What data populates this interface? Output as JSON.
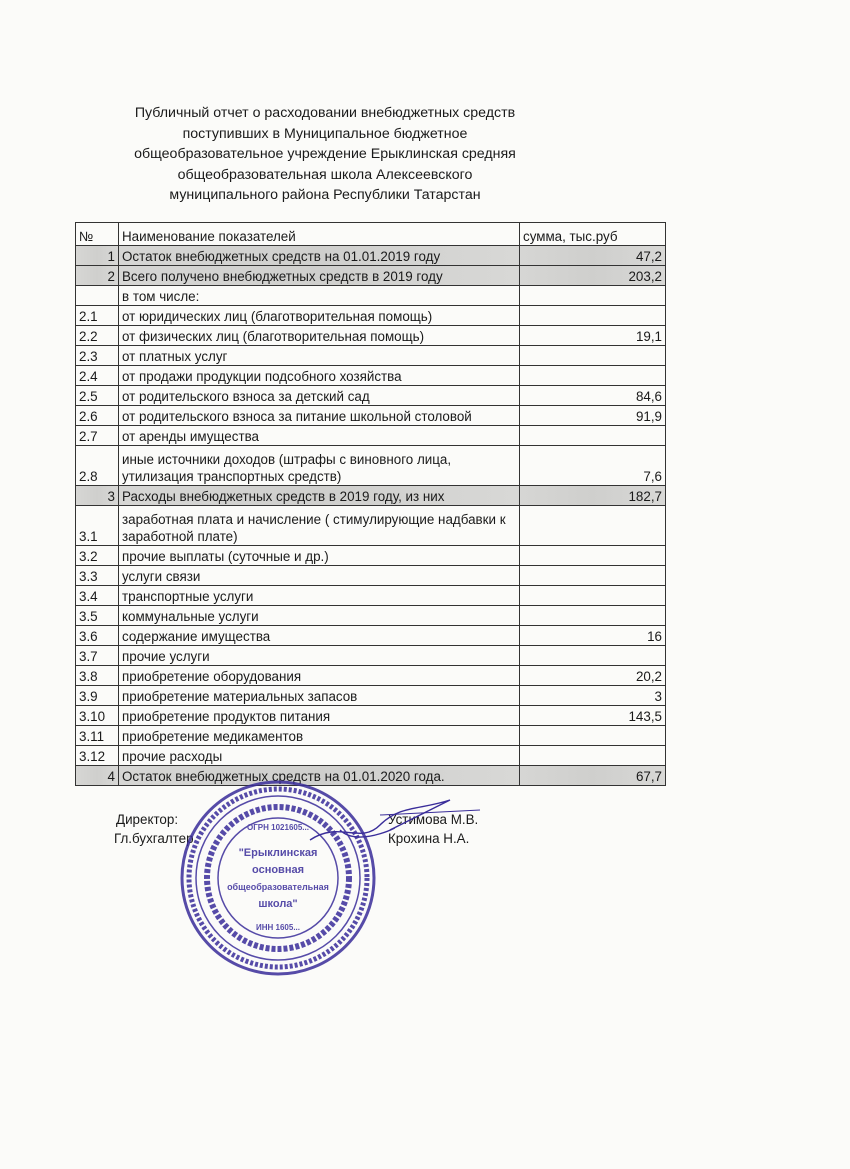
{
  "title_lines": [
    "Публичный отчет о расходовании внебюджетных средств",
    "поступивших в Муниципальное бюджетное",
    "общеобразовательное учреждение  Ерыклинская средняя",
    "общеобразовательная школа Алексеевского",
    "муниципального района Республики Татарстан"
  ],
  "table": {
    "headers": [
      "№",
      "Наименование показателей",
      "сумма, тыс.руб"
    ],
    "rows": [
      {
        "num": "1",
        "name": "Остаток внебюджетных средств на 01.01.2019 году",
        "sum": "47,2",
        "main": true
      },
      {
        "num": "2",
        "name": "Всего получено внебюджетных средств в 2019 году",
        "sum": "203,2",
        "main": true
      },
      {
        "num": "",
        "name": "в том числе:",
        "sum": ""
      },
      {
        "num": "2.1",
        "name": "от юридических лиц (благотворительная помощь)",
        "sum": ""
      },
      {
        "num": "2.2",
        "name": "от физических лиц (благотворительная помощь)",
        "sum": "19,1"
      },
      {
        "num": "2.3",
        "name": "от платных услуг",
        "sum": ""
      },
      {
        "num": "2.4",
        "name": "от продажи продукции подсобного хозяйства",
        "sum": ""
      },
      {
        "num": "2.5",
        "name": "от родительского взноса за детский сад",
        "sum": "84,6"
      },
      {
        "num": "2.6",
        "name": "от родительского взноса за питание школьной столовой",
        "sum": "91,9"
      },
      {
        "num": "2.7",
        "name": "от аренды имущества",
        "sum": ""
      },
      {
        "num": "2.8",
        "name": "иные источники доходов (штрафы с виновного лица, утилизация транспортных средств)",
        "sum": "7,6",
        "double": true
      },
      {
        "num": "3",
        "name": "Расходы внебюджетных средств в 2019 году, из них",
        "sum": "182,7",
        "main": true
      },
      {
        "num": "3.1",
        "name": "заработная плата и начисление ( стимулирующие надбавки к заработной плате)",
        "sum": "",
        "double": true
      },
      {
        "num": "3.2",
        "name": "прочие выплаты (суточные и др.)",
        "sum": ""
      },
      {
        "num": "3.3",
        "name": "услуги связи",
        "sum": ""
      },
      {
        "num": "3.4",
        "name": "транспортные услуги",
        "sum": ""
      },
      {
        "num": "3.5",
        "name": "коммунальные услуги",
        "sum": ""
      },
      {
        "num": "3.6",
        "name": "содержание имущества",
        "sum": "16"
      },
      {
        "num": "3.7",
        "name": "прочие услуги",
        "sum": ""
      },
      {
        "num": "3.8",
        "name": "приобретение оборудования",
        "sum": "20,2"
      },
      {
        "num": "3.9",
        "name": "приобретение материальных запасов",
        "sum": "3"
      },
      {
        "num": "3.10",
        "name": "приобретение продуктов питания",
        "sum": "143,5"
      },
      {
        "num": "3.11",
        "name": "приобретение медикаментов",
        "sum": ""
      },
      {
        "num": "3.12",
        "name": "прочие расходы",
        "sum": ""
      },
      {
        "num": "4",
        "name": "Остаток внебюджетных средств на 01.01.2020 года.",
        "sum": "67,7",
        "main": true
      }
    ]
  },
  "signatures": {
    "director_label": "Директор:",
    "director_name": "Устимова М.В.",
    "accountant_label": "Гл.бухгалтер",
    "accountant_name": "Крохина Н.А."
  },
  "stamp": {
    "center_text": [
      "\"Ерыклинская",
      "основная",
      "общеобразовательная",
      "школа\""
    ],
    "ogrn": "ОГРН 1021605...",
    "inn": "ИНН 1605...",
    "color": "#3a2d9a"
  }
}
